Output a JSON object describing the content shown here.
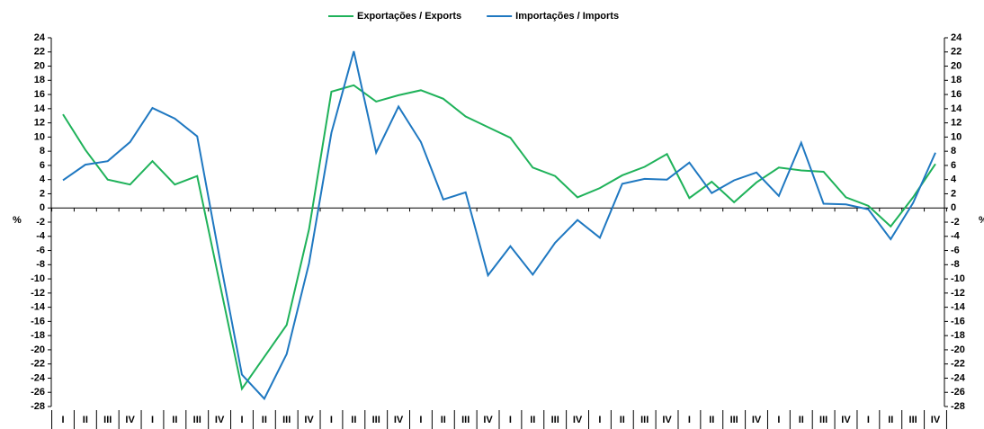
{
  "chart_data": {
    "type": "line",
    "y_label": "%",
    "categories": [
      "I",
      "II",
      "III",
      "IV",
      "I",
      "II",
      "III",
      "IV",
      "I",
      "II",
      "III",
      "IV",
      "I",
      "II",
      "III",
      "IV",
      "I",
      "II",
      "III",
      "IV",
      "I",
      "II",
      "III",
      "IV",
      "I",
      "II",
      "III",
      "IV",
      "I",
      "II",
      "III",
      "IV",
      "I",
      "II",
      "III",
      "IV",
      "I",
      "II",
      "III",
      "IV"
    ],
    "series": [
      {
        "name": "Exportações / Exports",
        "color": "#1fb25a",
        "values": [
          13.2,
          8.2,
          4.0,
          3.3,
          6.6,
          3.3,
          4.5,
          -10.5,
          -25.5,
          -21.0,
          -16.5,
          -3.0,
          16.4,
          17.3,
          15.0,
          15.9,
          16.6,
          15.4,
          12.9,
          11.4,
          9.9,
          5.7,
          4.5,
          1.5,
          2.8,
          4.6,
          5.8,
          7.6,
          1.4,
          3.7,
          0.8,
          3.6,
          5.7,
          5.3,
          5.1,
          1.5,
          0.3,
          -2.6,
          1.5,
          6.2
        ]
      },
      {
        "name": "Importações / Imports",
        "color": "#1f78c1",
        "values": [
          3.9,
          6.1,
          6.6,
          9.3,
          14.1,
          12.6,
          10.1,
          -7.0,
          -23.5,
          -26.9,
          -20.6,
          -7.8,
          10.6,
          22.1,
          7.8,
          14.3,
          9.3,
          1.2,
          2.2,
          -9.5,
          -5.4,
          -9.4,
          -4.9,
          -1.7,
          -4.2,
          3.4,
          4.1,
          4.0,
          6.4,
          2.1,
          3.9,
          5.0,
          1.7,
          9.2,
          0.6,
          0.5,
          -0.2,
          -4.4,
          0.7,
          7.8
        ]
      }
    ],
    "ylim": [
      -28,
      24
    ],
    "yticks": [
      -28,
      -26,
      -24,
      -22,
      -20,
      -18,
      -16,
      -14,
      -12,
      -10,
      -8,
      -6,
      -4,
      -2,
      0,
      2,
      4,
      6,
      8,
      10,
      12,
      14,
      16,
      18,
      20,
      22,
      24
    ],
    "legend": "top"
  }
}
